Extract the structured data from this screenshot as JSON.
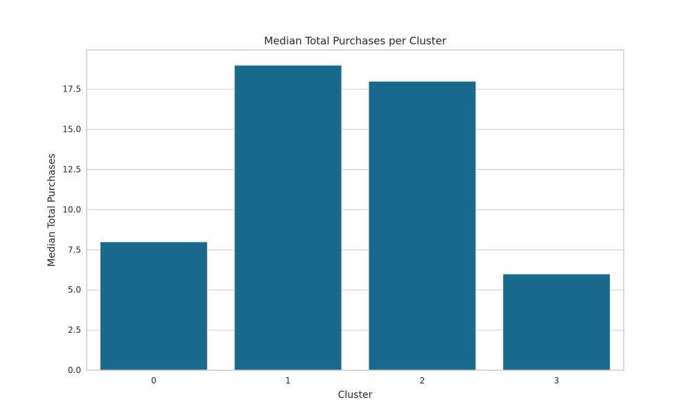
{
  "chart_data": {
    "type": "bar",
    "title": "Median Total Purchases per Cluster",
    "xlabel": "Cluster",
    "ylabel": "Median Total Purchases",
    "categories": [
      "0",
      "1",
      "2",
      "3"
    ],
    "values": [
      8,
      19,
      18,
      6
    ],
    "ylim": [
      0,
      19.95
    ],
    "yticks": [
      0,
      2.5,
      5,
      7.5,
      10,
      12.5,
      15,
      17.5
    ],
    "ytick_labels": [
      "0.0",
      "2.5",
      "5.0",
      "7.5",
      "10.0",
      "12.5",
      "15.0",
      "17.5"
    ],
    "grid": "horizontal",
    "bar_color": "#1a6a8e",
    "grid_color": "#cccccc"
  }
}
